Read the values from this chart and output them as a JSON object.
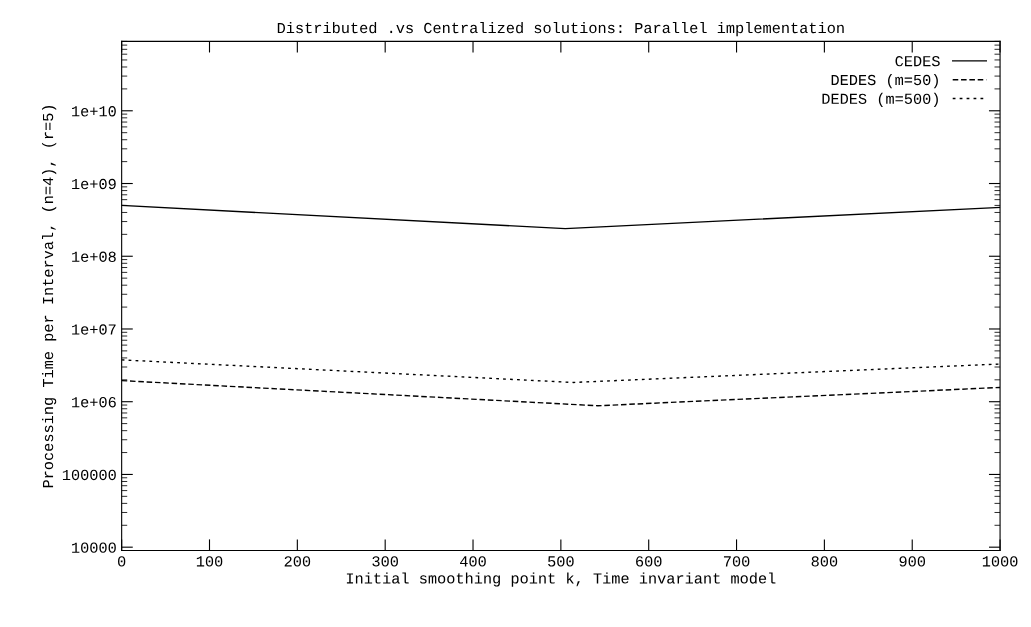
{
  "chart_data": {
    "type": "line",
    "title": "Distributed .vs Centralized solutions: Parallel implementation",
    "xlabel": "Initial smoothing point k, Time invariant model",
    "ylabel": "Processing Time per Interval, (n=4), (r=5)",
    "log": "y",
    "xlim": [
      0,
      1000
    ],
    "xticks": [
      0,
      100,
      200,
      300,
      400,
      500,
      600,
      700,
      800,
      900,
      1000
    ],
    "ylim": [
      9000,
      90000000000
    ],
    "yticks": [
      10000,
      100000,
      {
        "value": 1000000,
        "label": "1e+06"
      },
      {
        "value": 10000000,
        "label": "1e+07"
      },
      {
        "value": 100000000,
        "label": "1e+08"
      },
      {
        "value": 1000000000,
        "label": "1e+09"
      },
      {
        "value": 10000000000,
        "label": "1e+10"
      }
    ],
    "legend": "top right",
    "grid": false,
    "series": [
      {
        "name": "CEDES",
        "color": "#000000",
        "line_style": "solid",
        "x": [
          0,
          505,
          1000
        ],
        "values": [
          500000000,
          240000000,
          470000000
        ]
      },
      {
        "name": "DEDES (m=50)",
        "color": "#000000",
        "line_style": "dashed",
        "x": [
          0,
          542,
          1000
        ],
        "values": [
          1950000,
          880000,
          1570000
        ]
      },
      {
        "name": "DEDES (m=500)",
        "color": "#000000",
        "line_style": "dotted",
        "x": [
          0,
          514,
          1000
        ],
        "values": [
          3760000,
          1840000,
          3300000
        ]
      }
    ]
  }
}
